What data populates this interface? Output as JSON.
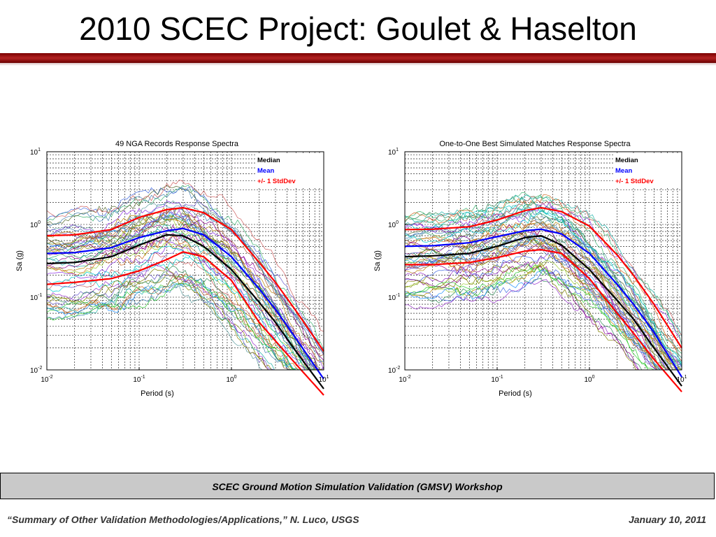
{
  "slide": {
    "title": "2010 SCEC Project: Goulet & Haselton",
    "workshop": "SCEC Ground Motion Simulation Validation (GMSV) Workshop",
    "footer_left": "“Summary of Other Validation Methodologies/Applications,” N. Luco, USGS",
    "footer_right": "January 10, 2011"
  },
  "colors": {
    "title_bar": "#9b1c1c",
    "workshop_bar": "#c9c9c9",
    "median": "#000000",
    "mean": "#0000ff",
    "stddev": "#ff0000"
  },
  "chart_data": [
    {
      "type": "line",
      "title": "49 NGA Records Response Spectra",
      "xlabel": "Period (s)",
      "ylabel": "Sa (g)",
      "xscale": "log",
      "yscale": "log",
      "xlim": [
        0.01,
        10
      ],
      "ylim": [
        0.01,
        10
      ],
      "xticks": [
        {
          "base": "10",
          "exp": "-2"
        },
        {
          "base": "10",
          "exp": "-1"
        },
        {
          "base": "10",
          "exp": "0"
        },
        {
          "base": "10",
          "exp": "1"
        }
      ],
      "yticks": [
        {
          "base": "10",
          "exp": "-2"
        },
        {
          "base": "10",
          "exp": "-1"
        },
        {
          "base": "10",
          "exp": "0"
        },
        {
          "base": "10",
          "exp": "1"
        }
      ],
      "grid": true,
      "legend": {
        "placement": "top-right",
        "entries": [
          "Median",
          "Mean",
          "+/- 1 StdDev"
        ]
      },
      "num_records": 49,
      "x": [
        0.01,
        0.02,
        0.05,
        0.1,
        0.2,
        0.3,
        0.5,
        1,
        2,
        3,
        5,
        10
      ],
      "series": [
        {
          "name": "Median",
          "color": "#000000",
          "values": [
            0.29,
            0.3,
            0.36,
            0.52,
            0.72,
            0.7,
            0.5,
            0.24,
            0.085,
            0.045,
            0.018,
            0.0055
          ]
        },
        {
          "name": "Mean",
          "color": "#0000ff",
          "values": [
            0.4,
            0.41,
            0.48,
            0.66,
            0.82,
            0.88,
            0.72,
            0.36,
            0.13,
            0.068,
            0.027,
            0.0075
          ]
        },
        {
          "name": "+/- 1 StdDev",
          "color": "#ff0000",
          "values": [
            0.7,
            0.72,
            0.85,
            1.25,
            1.6,
            1.7,
            1.45,
            0.85,
            0.3,
            0.16,
            0.065,
            0.018
          ]
        },
        {
          "name": "",
          "color": "#ff0000",
          "values": [
            0.15,
            0.16,
            0.18,
            0.23,
            0.33,
            0.42,
            0.36,
            0.17,
            0.045,
            0.025,
            0.012,
            0.0045
          ]
        }
      ]
    },
    {
      "type": "line",
      "title": "One-to-One Best Simulated Matches Response Spectra",
      "xlabel": "Period (s)",
      "ylabel": "Sa (g)",
      "xscale": "log",
      "yscale": "log",
      "xlim": [
        0.01,
        10
      ],
      "ylim": [
        0.01,
        10
      ],
      "xticks": [
        {
          "base": "10",
          "exp": "-2"
        },
        {
          "base": "10",
          "exp": "-1"
        },
        {
          "base": "10",
          "exp": "0"
        },
        {
          "base": "10",
          "exp": "1"
        }
      ],
      "yticks": [
        {
          "base": "10",
          "exp": "-2"
        },
        {
          "base": "10",
          "exp": "-1"
        },
        {
          "base": "10",
          "exp": "0"
        },
        {
          "base": "10",
          "exp": "1"
        }
      ],
      "grid": true,
      "legend": {
        "placement": "top-right",
        "entries": [
          "Median",
          "Mean",
          "+/- 1 StdDev"
        ]
      },
      "num_records": 49,
      "x": [
        0.01,
        0.02,
        0.05,
        0.1,
        0.2,
        0.3,
        0.5,
        1,
        2,
        3,
        5,
        10
      ],
      "series": [
        {
          "name": "Median",
          "color": "#000000",
          "values": [
            0.36,
            0.37,
            0.4,
            0.5,
            0.66,
            0.7,
            0.52,
            0.24,
            0.09,
            0.05,
            0.02,
            0.006
          ]
        },
        {
          "name": "Mean",
          "color": "#0000ff",
          "values": [
            0.5,
            0.51,
            0.56,
            0.68,
            0.82,
            0.86,
            0.74,
            0.4,
            0.15,
            0.08,
            0.033,
            0.008
          ]
        },
        {
          "name": "+/- 1 StdDev",
          "color": "#ff0000",
          "values": [
            0.85,
            0.86,
            0.93,
            1.15,
            1.55,
            1.7,
            1.5,
            0.95,
            0.38,
            0.2,
            0.08,
            0.02
          ]
        },
        {
          "name": "",
          "color": "#ff0000",
          "values": [
            0.28,
            0.28,
            0.3,
            0.35,
            0.43,
            0.45,
            0.4,
            0.18,
            0.06,
            0.032,
            0.014,
            0.005
          ]
        }
      ]
    }
  ]
}
